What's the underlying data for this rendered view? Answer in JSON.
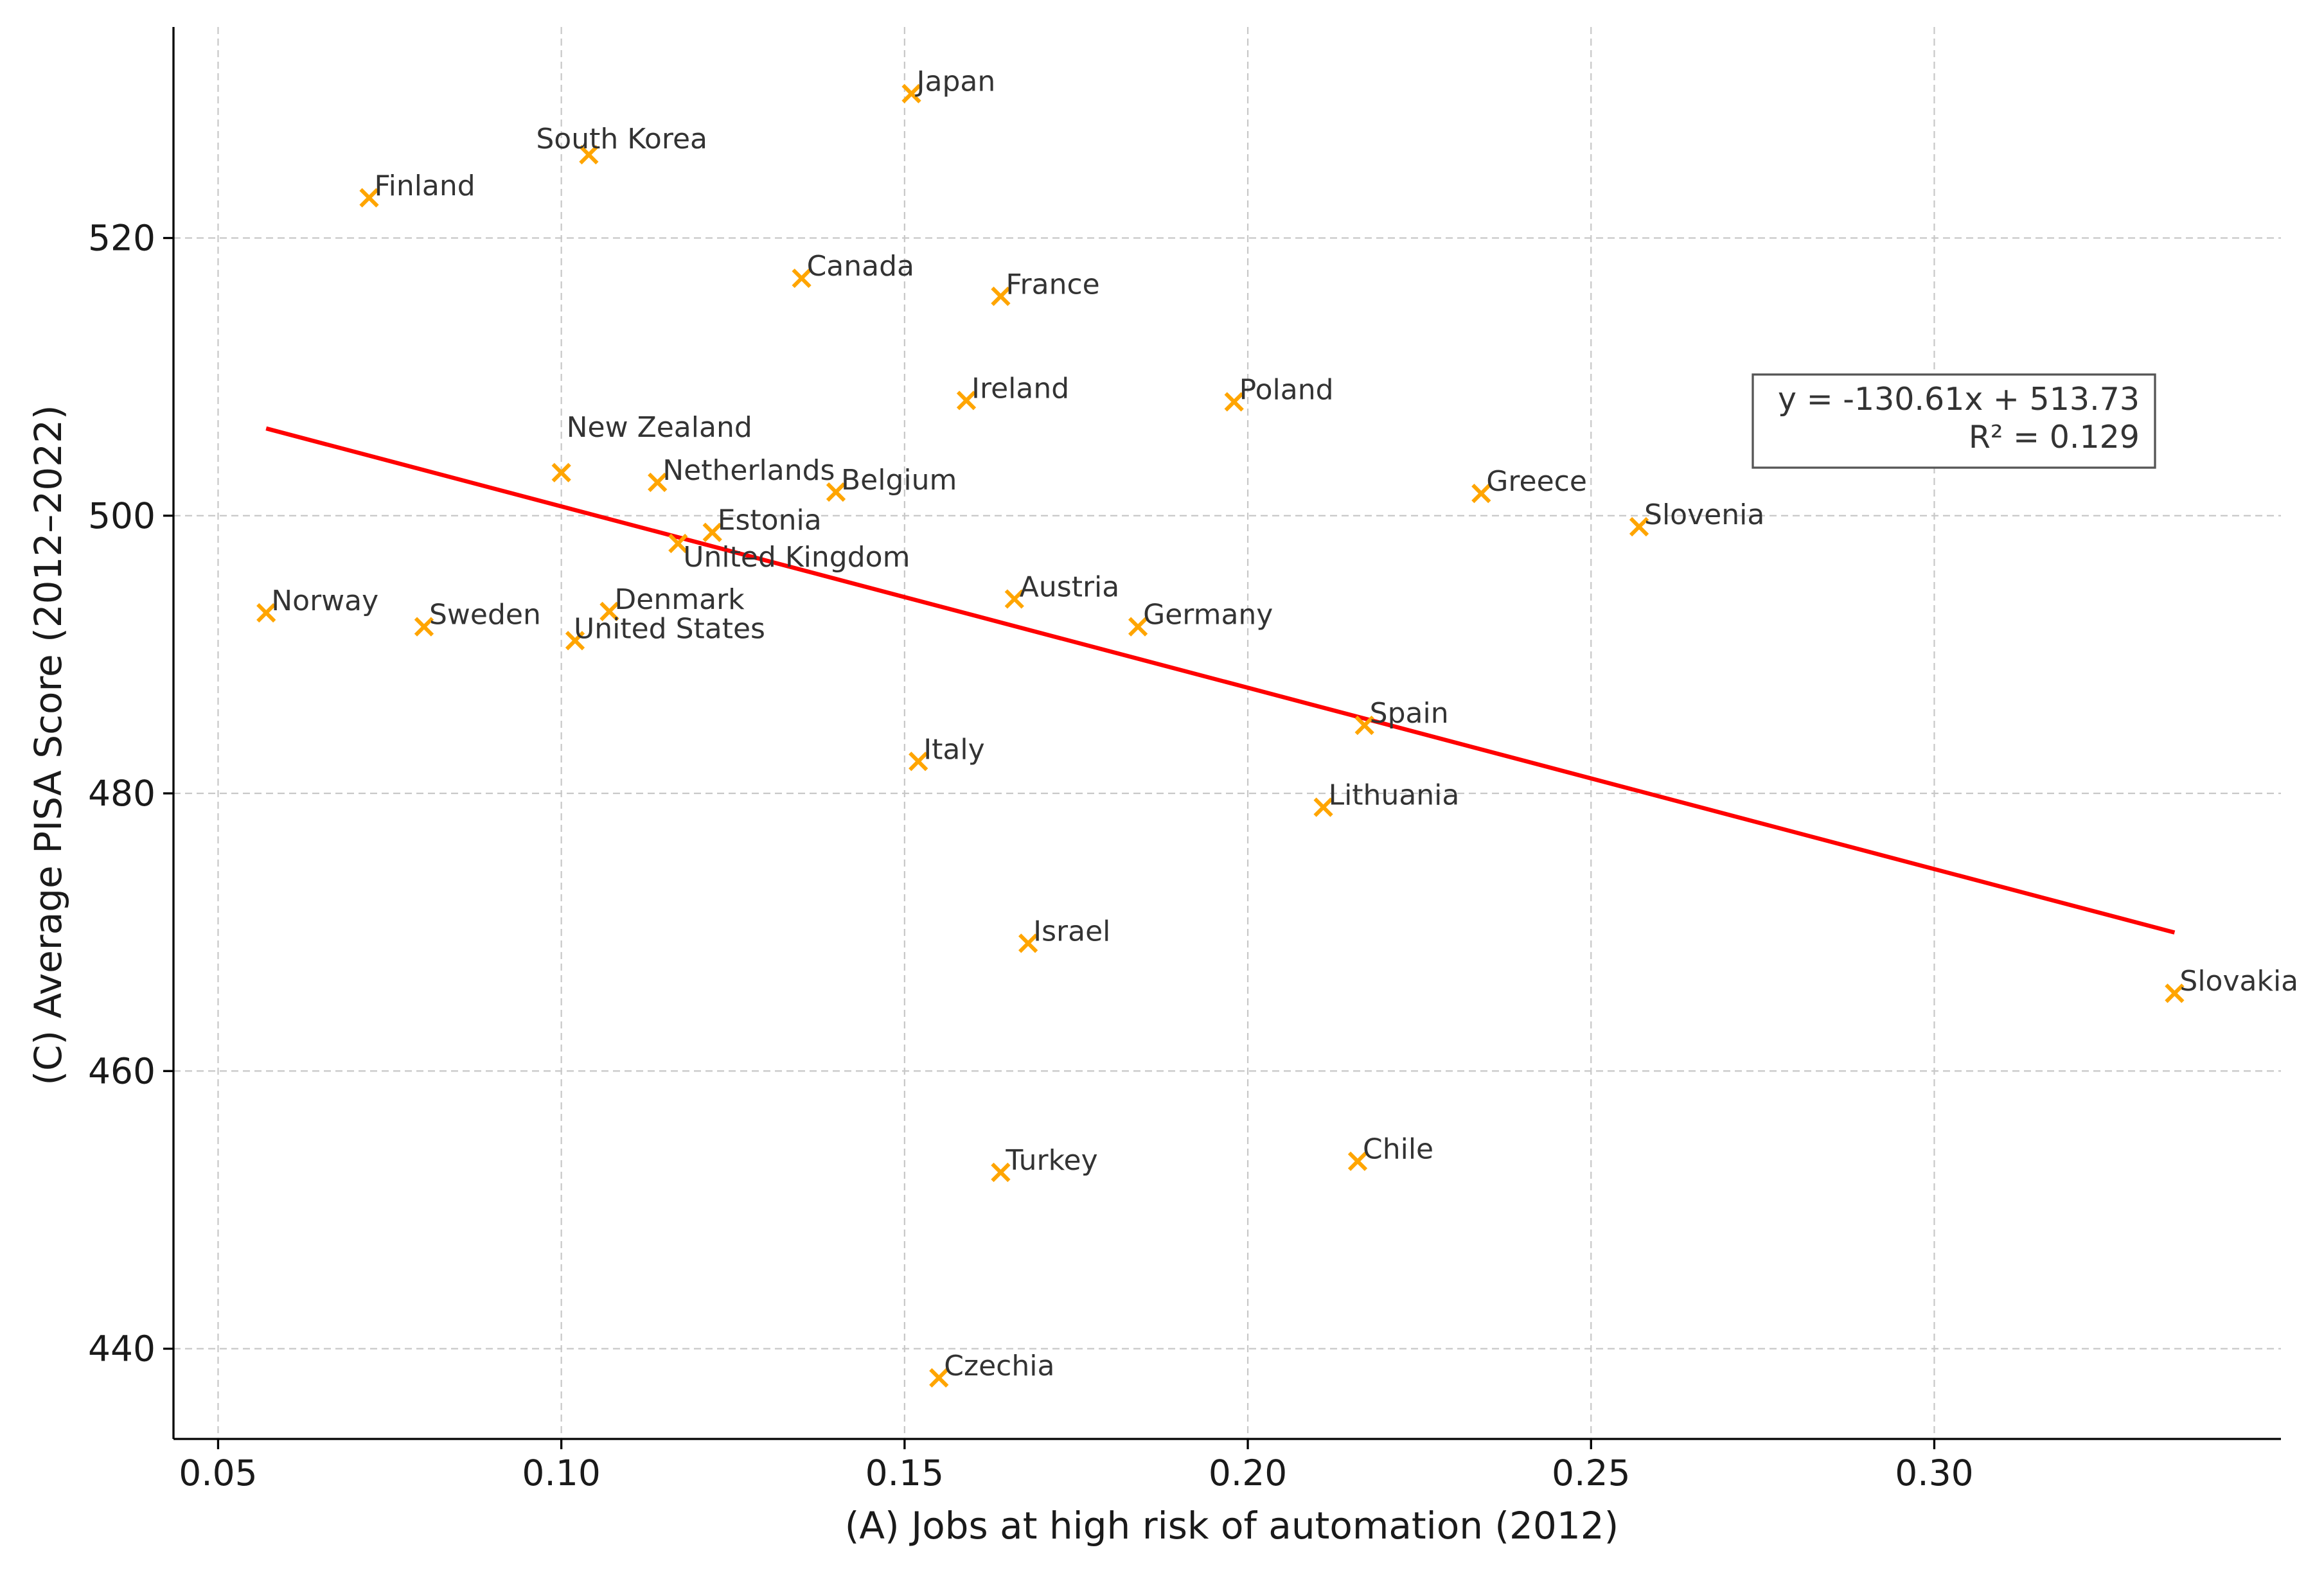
{
  "chart_data": {
    "type": "scatter",
    "title": "",
    "xlabel": "(A) Jobs at high risk of automation (2012)",
    "ylabel": "(C) Average PISA Score (2012–2022)",
    "xlim": [
      0.0435,
      0.3505
    ],
    "ylim": [
      433.5,
      535.2
    ],
    "xticks": [
      {
        "value": 0.05,
        "label": "0.05"
      },
      {
        "value": 0.1,
        "label": "0.10"
      },
      {
        "value": 0.15,
        "label": "0.15"
      },
      {
        "value": 0.2,
        "label": "0.20"
      },
      {
        "value": 0.25,
        "label": "0.25"
      },
      {
        "value": 0.3,
        "label": "0.30"
      }
    ],
    "yticks": [
      {
        "value": 440,
        "label": "440"
      },
      {
        "value": 460,
        "label": "460"
      },
      {
        "value": 480,
        "label": "480"
      },
      {
        "value": 500,
        "label": "500"
      },
      {
        "value": 520,
        "label": "520"
      }
    ],
    "grid": true,
    "marker_color": "#FFA500",
    "line_color": "#FF0000",
    "points": [
      {
        "label": "Japan",
        "x": 0.151,
        "y": 530.4
      },
      {
        "label": "South Korea",
        "x": 0.104,
        "y": 526.0
      },
      {
        "label": "Finland",
        "x": 0.072,
        "y": 522.9
      },
      {
        "label": "Canada",
        "x": 0.135,
        "y": 517.1
      },
      {
        "label": "France",
        "x": 0.164,
        "y": 515.8
      },
      {
        "label": "Ireland",
        "x": 0.159,
        "y": 508.3
      },
      {
        "label": "Poland",
        "x": 0.198,
        "y": 508.2
      },
      {
        "label": "New Zealand",
        "x": 0.1,
        "y": 503.1
      },
      {
        "label": "Netherlands",
        "x": 0.114,
        "y": 502.4
      },
      {
        "label": "Belgium",
        "x": 0.14,
        "y": 501.7
      },
      {
        "label": "Greece",
        "x": 0.234,
        "y": 501.6
      },
      {
        "label": "Slovenia",
        "x": 0.257,
        "y": 499.2
      },
      {
        "label": "Estonia",
        "x": 0.122,
        "y": 498.8
      },
      {
        "label": "United Kingdom",
        "x": 0.117,
        "y": 498.0
      },
      {
        "label": "Austria",
        "x": 0.166,
        "y": 494.0
      },
      {
        "label": "Norway",
        "x": 0.057,
        "y": 493.0
      },
      {
        "label": "Denmark",
        "x": 0.107,
        "y": 493.1
      },
      {
        "label": "Sweden",
        "x": 0.08,
        "y": 492.0
      },
      {
        "label": "Germany",
        "x": 0.184,
        "y": 492.0
      },
      {
        "label": "United States",
        "x": 0.102,
        "y": 491.0
      },
      {
        "label": "Spain",
        "x": 0.217,
        "y": 484.9
      },
      {
        "label": "Italy",
        "x": 0.152,
        "y": 482.3
      },
      {
        "label": "Lithuania",
        "x": 0.211,
        "y": 479.0
      },
      {
        "label": "Israel",
        "x": 0.168,
        "y": 469.2
      },
      {
        "label": "Slovakia",
        "x": 0.335,
        "y": 465.6
      },
      {
        "label": "Chile",
        "x": 0.216,
        "y": 453.5
      },
      {
        "label": "Turkey",
        "x": 0.164,
        "y": 452.7
      },
      {
        "label": "Czechia",
        "x": 0.155,
        "y": 437.9
      }
    ],
    "trendline": {
      "slope": -130.61,
      "intercept": 513.73,
      "x_start": 0.057,
      "x_end": 0.335
    },
    "annotation": {
      "equation": "y = -130.61x + 513.73",
      "r_squared": "R² = 0.129"
    }
  }
}
